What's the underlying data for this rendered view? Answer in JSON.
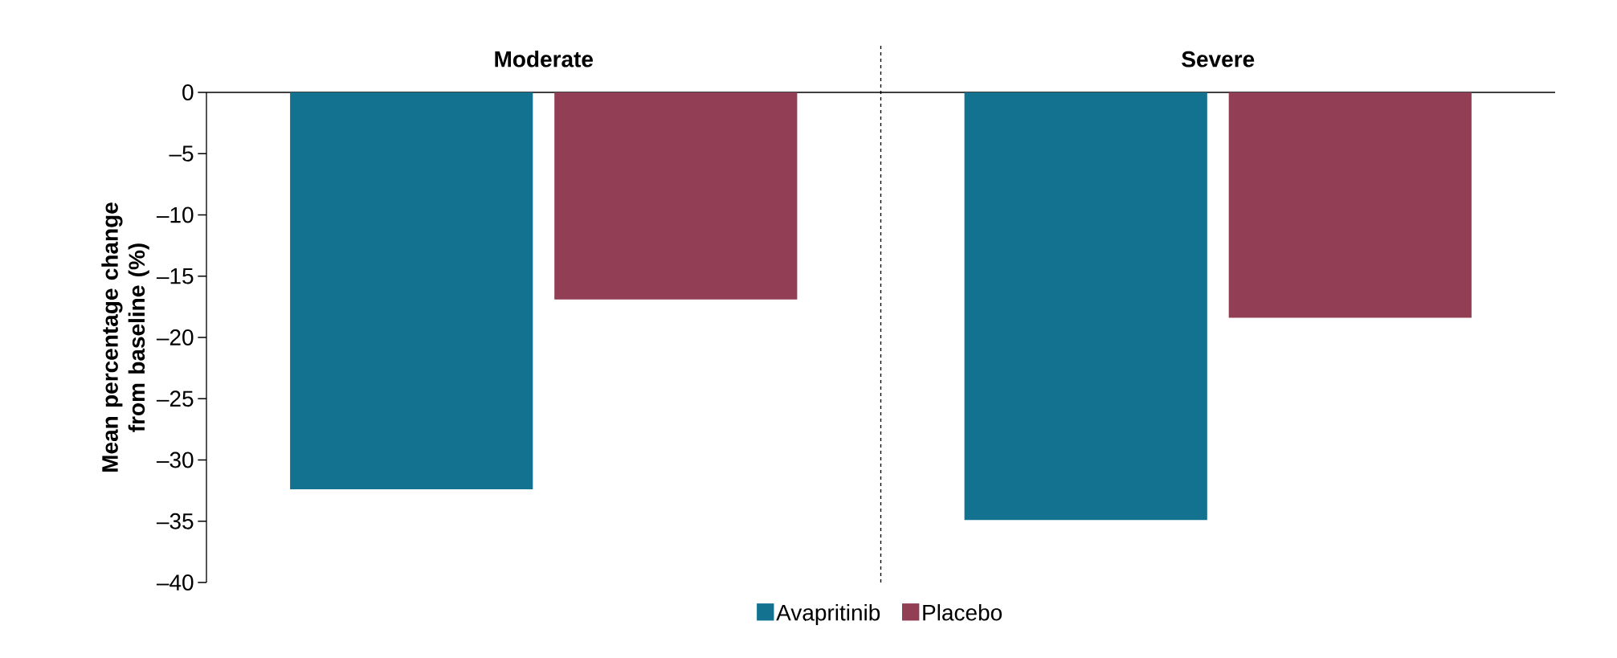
{
  "chart_data": {
    "type": "bar",
    "ylabel": "Mean percentage change from baseline (%)",
    "categories": [
      "Moderate",
      "Severe"
    ],
    "series": [
      {
        "name": "Avapritinib",
        "color": "#13728f",
        "values": [
          -32.4,
          -34.9
        ]
      },
      {
        "name": "Placebo",
        "color": "#923e55",
        "values": [
          -16.9,
          -18.4
        ]
      }
    ],
    "ylim": [
      -40,
      0
    ],
    "yticks": [
      0,
      {
        "value": -5,
        "label": "–5"
      },
      {
        "value": -10,
        "label": "–10"
      },
      {
        "value": -15,
        "label": "–15"
      },
      {
        "value": -20,
        "label": "–20"
      },
      {
        "value": -25,
        "label": "–25"
      },
      {
        "value": -30,
        "label": "–30"
      },
      {
        "value": -35,
        "label": "–35"
      },
      {
        "value": -40,
        "label": "–40"
      }
    ],
    "grid": false,
    "legend": "bottom"
  }
}
